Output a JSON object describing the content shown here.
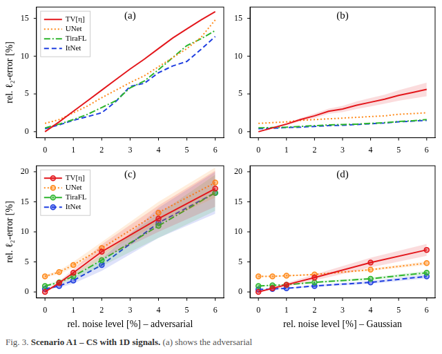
{
  "caption": {
    "prefix": "Fig. 3.",
    "bold": "Scenario A1 – CS with 1D signals.",
    "text": "(a) shows the adversarial"
  },
  "chart_data": [
    {
      "type": "line",
      "title": "(a)",
      "y_label": "rel. ℓ₂-error [%]",
      "x": [
        0,
        0.5,
        1,
        1.5,
        2,
        2.5,
        3,
        3.5,
        4,
        4.5,
        5,
        5.5,
        6
      ],
      "xlim": [
        -0.3,
        6.3
      ],
      "ylim": [
        -0.8,
        16.5
      ],
      "xticks": [
        0,
        1,
        2,
        3,
        4,
        5,
        6
      ],
      "yticks": [
        0,
        5,
        10,
        15
      ],
      "grid": false,
      "legend": "upper left",
      "series": [
        {
          "name": "TV[η]",
          "color": "#e3171c",
          "line_style": "solid",
          "values": [
            0,
            1.3,
            2.7,
            4.1,
            5.5,
            6.9,
            8.3,
            9.6,
            11.0,
            12.4,
            13.6,
            14.8,
            15.9
          ]
        },
        {
          "name": "UNet",
          "color": "#ff8a1a",
          "line_style": "dotted",
          "values": [
            1.1,
            1.6,
            2.5,
            3.4,
            4.5,
            5.5,
            6.5,
            7.4,
            8.6,
            9.8,
            11.0,
            12.5,
            14.8
          ]
        },
        {
          "name": "TiraFL",
          "color": "#2db52d",
          "line_style": "dashdot",
          "values": [
            0.5,
            1.0,
            1.6,
            2.3,
            3.2,
            4.1,
            5.8,
            6.7,
            8.2,
            9.8,
            11.4,
            12.3,
            13.4
          ]
        },
        {
          "name": "ItNet",
          "color": "#1f3fe0",
          "line_style": "dashed",
          "values": [
            0.4,
            0.9,
            1.5,
            2.0,
            2.5,
            4.0,
            6.0,
            6.4,
            7.8,
            8.7,
            9.3,
            10.9,
            12.6
          ]
        }
      ]
    },
    {
      "type": "line",
      "title": "(b)",
      "x": [
        0,
        0.5,
        1,
        1.5,
        2,
        2.5,
        3,
        3.5,
        4,
        4.5,
        5,
        5.5,
        6
      ],
      "xlim": [
        -0.3,
        6.3
      ],
      "ylim": [
        -0.8,
        16.5
      ],
      "xticks": [
        0,
        1,
        2,
        3,
        4,
        5,
        6
      ],
      "yticks": [
        0,
        5,
        10,
        15
      ],
      "grid": false,
      "series": [
        {
          "name": "TV[η]",
          "color": "#e3171c",
          "line_style": "solid",
          "values": [
            0,
            0.5,
            1.0,
            1.6,
            2.1,
            2.7,
            3.0,
            3.5,
            3.9,
            4.3,
            4.8,
            5.2,
            5.6
          ],
          "std": [
            0,
            0.1,
            0.15,
            0.2,
            0.3,
            0.35,
            0.4,
            0.5,
            0.55,
            0.6,
            0.7,
            0.8,
            0.9
          ]
        },
        {
          "name": "UNet",
          "color": "#ff8a1a",
          "line_style": "dotted",
          "values": [
            1.1,
            1.2,
            1.3,
            1.5,
            1.6,
            1.7,
            1.8,
            1.9,
            2.0,
            2.1,
            2.3,
            2.4,
            2.5
          ]
        },
        {
          "name": "TiraFL",
          "color": "#2db52d",
          "line_style": "dashdot",
          "values": [
            0.5,
            0.55,
            0.6,
            0.7,
            0.8,
            0.9,
            0.95,
            1.0,
            1.1,
            1.2,
            1.35,
            1.45,
            1.6
          ]
        },
        {
          "name": "ItNet",
          "color": "#1f3fe0",
          "line_style": "dashed",
          "values": [
            0.4,
            0.45,
            0.55,
            0.6,
            0.7,
            0.8,
            0.85,
            0.95,
            1.05,
            1.15,
            1.3,
            1.4,
            1.5
          ]
        }
      ]
    },
    {
      "type": "line",
      "title": "(c)",
      "y_label": "rel. ℓ₂-error [%]",
      "x_label": "rel. noise level [%] – adversarial",
      "x": [
        0,
        0.5,
        1,
        2,
        4,
        6
      ],
      "xlim": [
        -0.3,
        6.3
      ],
      "ylim": [
        -1,
        21
      ],
      "xticks": [
        0,
        1,
        2,
        3,
        4,
        5,
        6
      ],
      "yticks": [
        0,
        5,
        10,
        15,
        20
      ],
      "grid": false,
      "legend": "upper left",
      "series": [
        {
          "name": "TV[η]",
          "color": "#e3171c",
          "line_style": "solid",
          "marker": "circle",
          "values": [
            0,
            1.5,
            3.2,
            6.7,
            12.2,
            17.2
          ],
          "std": [
            0,
            0.3,
            0.6,
            1.2,
            2.2,
            3.0
          ]
        },
        {
          "name": "UNet",
          "color": "#ff8a1a",
          "line_style": "dotted",
          "marker": "circle",
          "values": [
            2.6,
            3.3,
            4.5,
            7.3,
            13.2,
            18.2
          ],
          "std": [
            0.2,
            0.3,
            0.5,
            1.0,
            1.8,
            2.5
          ]
        },
        {
          "name": "TiraFL",
          "color": "#2db52d",
          "line_style": "dashdot",
          "marker": "circle",
          "values": [
            1.0,
            1.6,
            2.6,
            5.3,
            11.0,
            16.5
          ],
          "std": [
            0.2,
            0.3,
            0.5,
            1.0,
            2.0,
            3.0
          ]
        },
        {
          "name": "ItNet",
          "color": "#1f3fe0",
          "line_style": "dashed",
          "marker": "circle",
          "values": [
            0.5,
            1.0,
            1.9,
            4.5,
            11.5,
            16.5
          ],
          "std": [
            0.1,
            0.3,
            0.5,
            1.0,
            2.5,
            3.5
          ]
        }
      ]
    },
    {
      "type": "line",
      "title": "(d)",
      "x_label": "rel. noise level [%] – Gaussian",
      "x": [
        0,
        0.5,
        1,
        2,
        4,
        6
      ],
      "xlim": [
        -0.3,
        6.3
      ],
      "ylim": [
        -1,
        21
      ],
      "xticks": [
        0,
        1,
        2,
        3,
        4,
        5,
        6
      ],
      "yticks": [
        0,
        5,
        10,
        15,
        20
      ],
      "grid": false,
      "series": [
        {
          "name": "TV[η]",
          "color": "#e3171c",
          "line_style": "solid",
          "marker": "circle",
          "values": [
            0,
            0.6,
            1.2,
            2.4,
            4.9,
            7.0
          ],
          "std": [
            0,
            0.2,
            0.3,
            0.5,
            0.8,
            1.0
          ]
        },
        {
          "name": "UNet",
          "color": "#ff8a1a",
          "line_style": "dotted",
          "marker": "circle",
          "values": [
            2.6,
            2.6,
            2.7,
            2.9,
            3.7,
            4.8
          ],
          "std": [
            0.1,
            0.1,
            0.1,
            0.15,
            0.2,
            0.3
          ]
        },
        {
          "name": "TiraFL",
          "color": "#2db52d",
          "line_style": "dashdot",
          "marker": "circle",
          "values": [
            1.0,
            1.1,
            1.2,
            1.6,
            2.2,
            3.2
          ],
          "std": [
            0.1,
            0.1,
            0.1,
            0.15,
            0.2,
            0.3
          ]
        },
        {
          "name": "ItNet",
          "color": "#1f3fe0",
          "line_style": "dashed",
          "marker": "circle",
          "values": [
            0.4,
            0.5,
            0.6,
            1.0,
            1.6,
            2.6
          ],
          "std": [
            0.05,
            0.1,
            0.1,
            0.15,
            0.25,
            0.35
          ]
        }
      ]
    }
  ]
}
